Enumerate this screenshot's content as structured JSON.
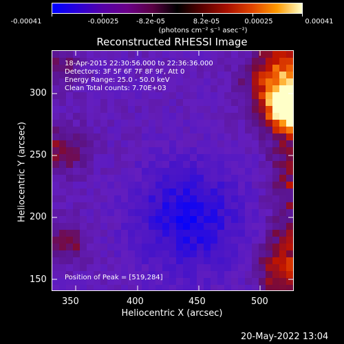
{
  "colorbar": {
    "tick_labels": [
      "-0.00041",
      "-0.00025",
      "-8.2e-05",
      "8.2e-05",
      "0.00025",
      "0.00041"
    ],
    "unit_label": "(photons cm⁻² s⁻¹ asec⁻²)",
    "colors": [
      "#0000ff",
      "#5500a8",
      "#000000",
      "#a81000",
      "#ff9a00",
      "#ffffc8"
    ]
  },
  "plot": {
    "title": "Reconstructed RHESSI Image",
    "info_lines": [
      "18-Apr-2015 22:30:56.000 to 22:36:36.000",
      "Detectors: 3F 5F 6F 7F 8F 9F, Att 0",
      "Energy Range: 25.0 - 50.0 keV",
      "Clean     Total counts: 7.70E+03"
    ],
    "peak_label": "Position of Peak = [519,284]",
    "x_axis": {
      "title": "Heliocentric X (arcsec)",
      "ticks": [
        "350",
        "400",
        "450",
        "500"
      ]
    },
    "y_axis": {
      "title": "Heliocentric Y (arcsec)",
      "ticks": [
        "150",
        "200",
        "250",
        "300"
      ]
    }
  },
  "footer": {
    "date": "20-May-2022 13:04"
  }
}
